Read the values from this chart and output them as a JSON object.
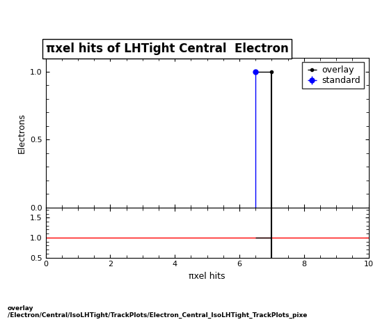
{
  "title": "πxel hits of LHTight Central  Electron",
  "ylabel_main": "Electrons",
  "xlabel": "πxel hits",
  "xlim": [
    0,
    10
  ],
  "ylim_main": [
    0,
    1.1
  ],
  "ylim_ratio": [
    0.5,
    1.75
  ],
  "ratio_yticks": [
    0.5,
    1,
    1.5
  ],
  "main_yticks": [
    0,
    0.5,
    1.0
  ],
  "overlay_x": 7.0,
  "overlay_y": 1.0,
  "standard_x": 6.5,
  "standard_y": 1.0,
  "overlay_color": "black",
  "standard_color": "blue",
  "ratio_line_color": "red",
  "ratio_point_x": 7.0,
  "ratio_point_y": 1.0,
  "vertical_line_x_black": 7.0,
  "vertical_line_x_blue": 6.5,
  "footer_text": "overlay\n/Electron/Central/IsoLHTight/TrackPlots/Electron_Central_IsoLHTight_TrackPlots_pixe",
  "title_fontsize": 12,
  "label_fontsize": 9,
  "tick_fontsize": 8,
  "legend_fontsize": 9
}
